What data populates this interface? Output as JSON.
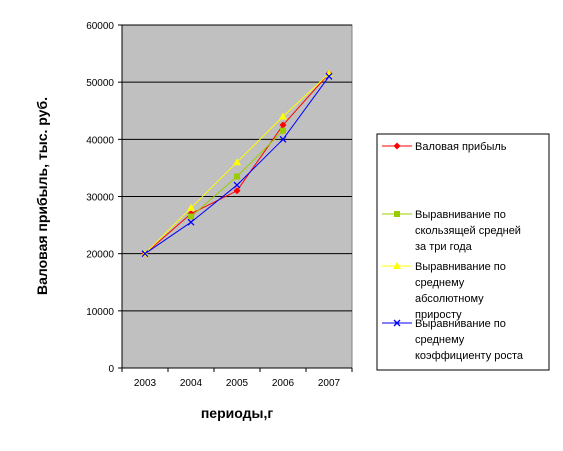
{
  "chart_data": {
    "type": "line",
    "title": "",
    "xlabel": "периоды,г",
    "ylabel": "Валовая прибыль, тыс. руб.",
    "categories": [
      "2003",
      "2004",
      "2005",
      "2006",
      "2007"
    ],
    "ylim": [
      0,
      60000
    ],
    "yticks": [
      "0",
      "10000",
      "20000",
      "30000",
      "40000",
      "50000",
      "60000"
    ],
    "grid": true,
    "legend_position": "right",
    "plot_background": "#c0c0c0",
    "series": [
      {
        "name": "Валовая прибыль",
        "color": "#ff0000",
        "marker": "diamond",
        "values": [
          20000,
          27000,
          31000,
          42500,
          51500
        ]
      },
      {
        "name": "Выравнивание по скользящей средней за три года",
        "color": "#99cc00",
        "marker": "square",
        "values": [
          null,
          26500,
          33500,
          41500,
          null
        ]
      },
      {
        "name": "Выравнивание по среднему абсолютному приросту",
        "color": "#ffff00",
        "marker": "triangle",
        "values": [
          20000,
          28000,
          36000,
          44000,
          51500
        ]
      },
      {
        "name": "Выравнивание по среднему коэффициенту роста",
        "color": "#0000ff",
        "marker": "x",
        "values": [
          20000,
          25500,
          32000,
          40000,
          51000
        ]
      }
    ],
    "legend": [
      {
        "lines": [
          "Валовая прибыль"
        ]
      },
      {
        "lines": [
          "Выравнивание по",
          "скользящей средней",
          "за три года"
        ]
      },
      {
        "lines": [
          "Выравнивание по",
          "среднему",
          "абсолютному",
          "приросту"
        ]
      },
      {
        "lines": [
          "Выравнивание по",
          "среднему",
          "коэффициенту роста"
        ]
      }
    ]
  }
}
